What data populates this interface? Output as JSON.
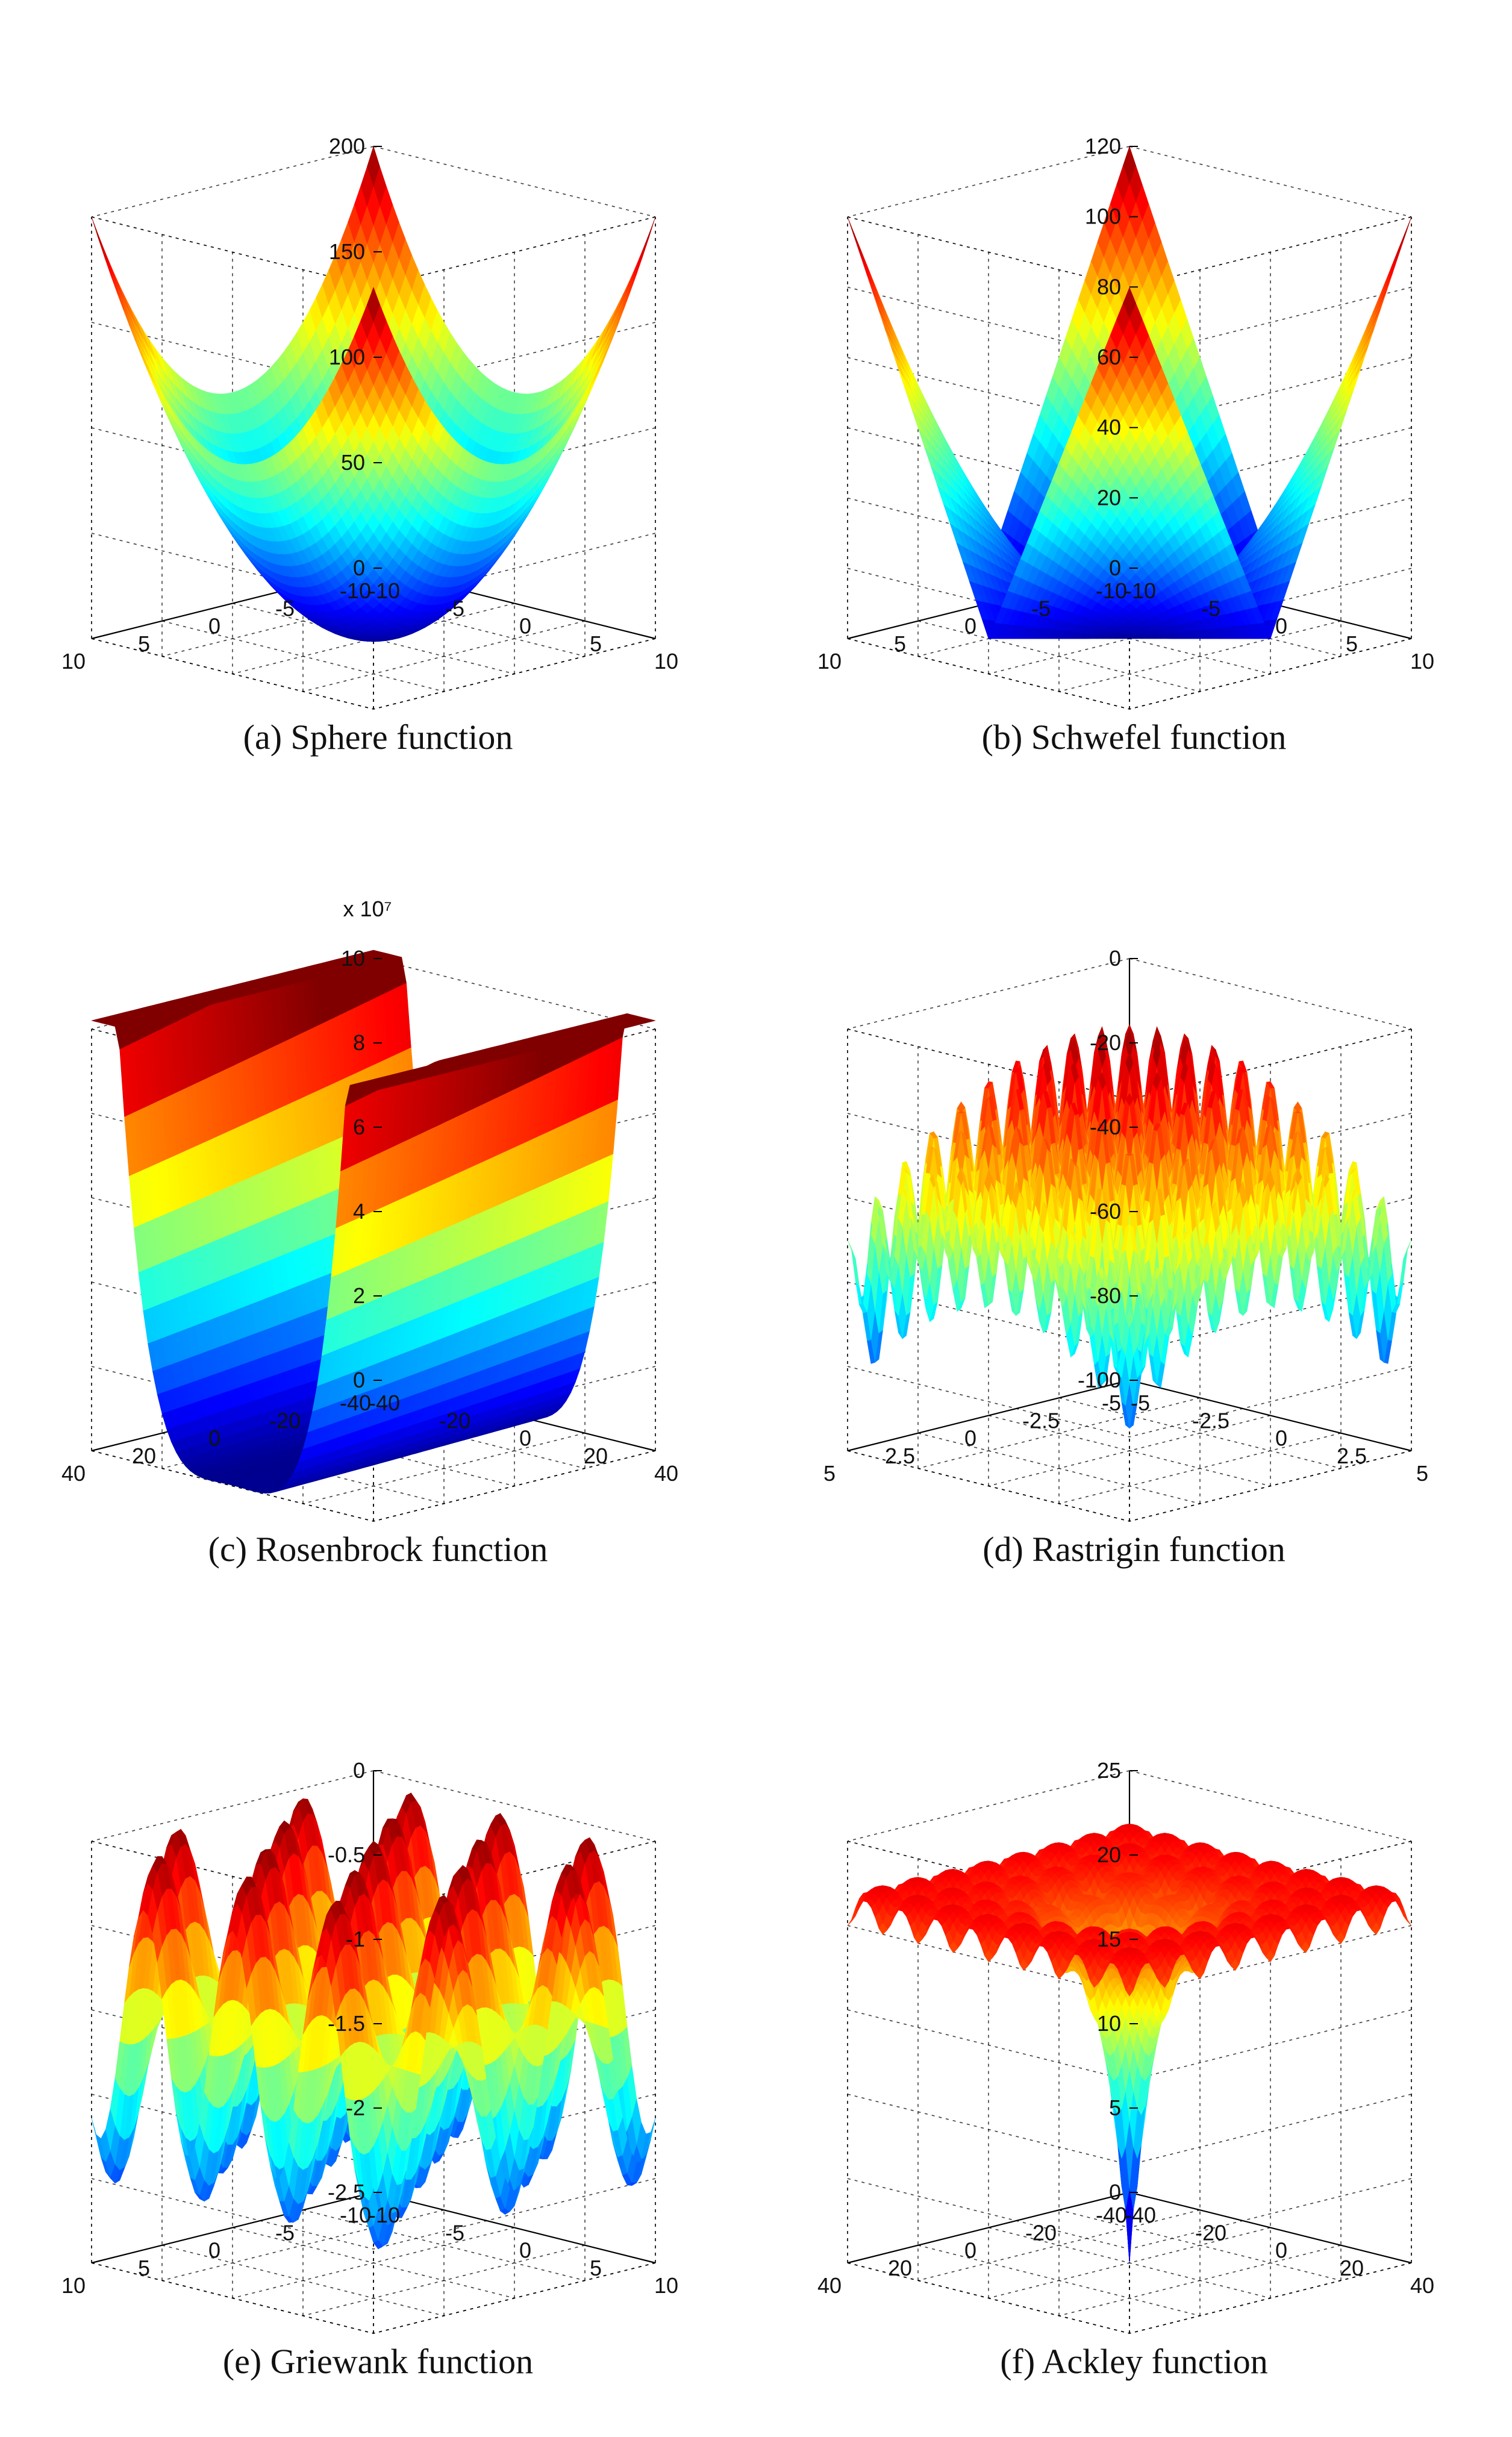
{
  "figure": {
    "colormap": [
      "#00008f",
      "#0000ff",
      "#0080ff",
      "#00ffff",
      "#80ff80",
      "#ffff00",
      "#ff8000",
      "#ff0000",
      "#800000"
    ]
  },
  "chart_data": [
    {
      "type": "surface",
      "caption": "(a) Sphere function",
      "function": "sphere",
      "xlim": [
        -10,
        10
      ],
      "ylim": [
        -10,
        10
      ],
      "zlim": [
        0,
        200
      ],
      "x_ticks": [
        "-10",
        "-5",
        "0",
        "5",
        "10"
      ],
      "y_ticks": [
        "-10",
        "-5",
        "0",
        "5",
        "10"
      ],
      "z_ticks": [
        "0",
        "50",
        "100",
        "150",
        "200"
      ],
      "z_exponent": ""
    },
    {
      "type": "surface",
      "caption": "(b) Schwefel function",
      "function": "schwefel",
      "xlim": [
        -10,
        10
      ],
      "ylim": [
        -10,
        10
      ],
      "zlim": [
        0,
        120
      ],
      "x_ticks": [
        "-10",
        "-5",
        "0",
        "5",
        "10"
      ],
      "y_ticks": [
        "-10",
        "-5",
        "0",
        "5",
        "10"
      ],
      "z_ticks": [
        "0",
        "20",
        "40",
        "60",
        "80",
        "100",
        "120"
      ],
      "z_exponent": ""
    },
    {
      "type": "surface",
      "caption": "(c) Rosenbrock function",
      "function": "rosenbrock",
      "xlim": [
        -40,
        40
      ],
      "ylim": [
        -40,
        40
      ],
      "zlim": [
        0,
        10
      ],
      "x_ticks": [
        "-40",
        "-20",
        "0",
        "20",
        "40"
      ],
      "y_ticks": [
        "-40",
        "-20",
        "0",
        "20",
        "40"
      ],
      "z_ticks": [
        "0",
        "2",
        "4",
        "6",
        "8",
        "10"
      ],
      "z_exponent": "x 10⁷"
    },
    {
      "type": "surface",
      "caption": "(d) Rastrigin function",
      "function": "rastrigin",
      "xlim": [
        -5,
        5
      ],
      "ylim": [
        -5,
        5
      ],
      "zlim": [
        -100,
        0
      ],
      "x_ticks": [
        "-5",
        "-2.5",
        "0",
        "2.5",
        "5"
      ],
      "y_ticks": [
        "-5",
        "-2.5",
        "0",
        "2.5",
        "5"
      ],
      "z_ticks": [
        "-100",
        "-80",
        "-60",
        "-40",
        "-20",
        "0"
      ],
      "z_exponent": ""
    },
    {
      "type": "surface",
      "caption": "(e) Griewank function",
      "function": "griewank",
      "xlim": [
        -10,
        10
      ],
      "ylim": [
        -10,
        10
      ],
      "zlim": [
        -2.5,
        0
      ],
      "x_ticks": [
        "-10",
        "-5",
        "0",
        "5",
        "10"
      ],
      "y_ticks": [
        "-10",
        "-5",
        "0",
        "5",
        "10"
      ],
      "z_ticks": [
        "-2.5",
        "-2",
        "-1.5",
        "-1",
        "-0.5",
        "0"
      ],
      "z_exponent": ""
    },
    {
      "type": "surface",
      "caption": "(f) Ackley function",
      "function": "ackley",
      "xlim": [
        -40,
        40
      ],
      "ylim": [
        -40,
        40
      ],
      "zlim": [
        0,
        25
      ],
      "x_ticks": [
        "-40",
        "-20",
        "0",
        "20",
        "40"
      ],
      "y_ticks": [
        "-40",
        "-20",
        "0",
        "20",
        "40"
      ],
      "z_ticks": [
        "0",
        "5",
        "10",
        "15",
        "20",
        "25"
      ],
      "z_exponent": ""
    }
  ]
}
